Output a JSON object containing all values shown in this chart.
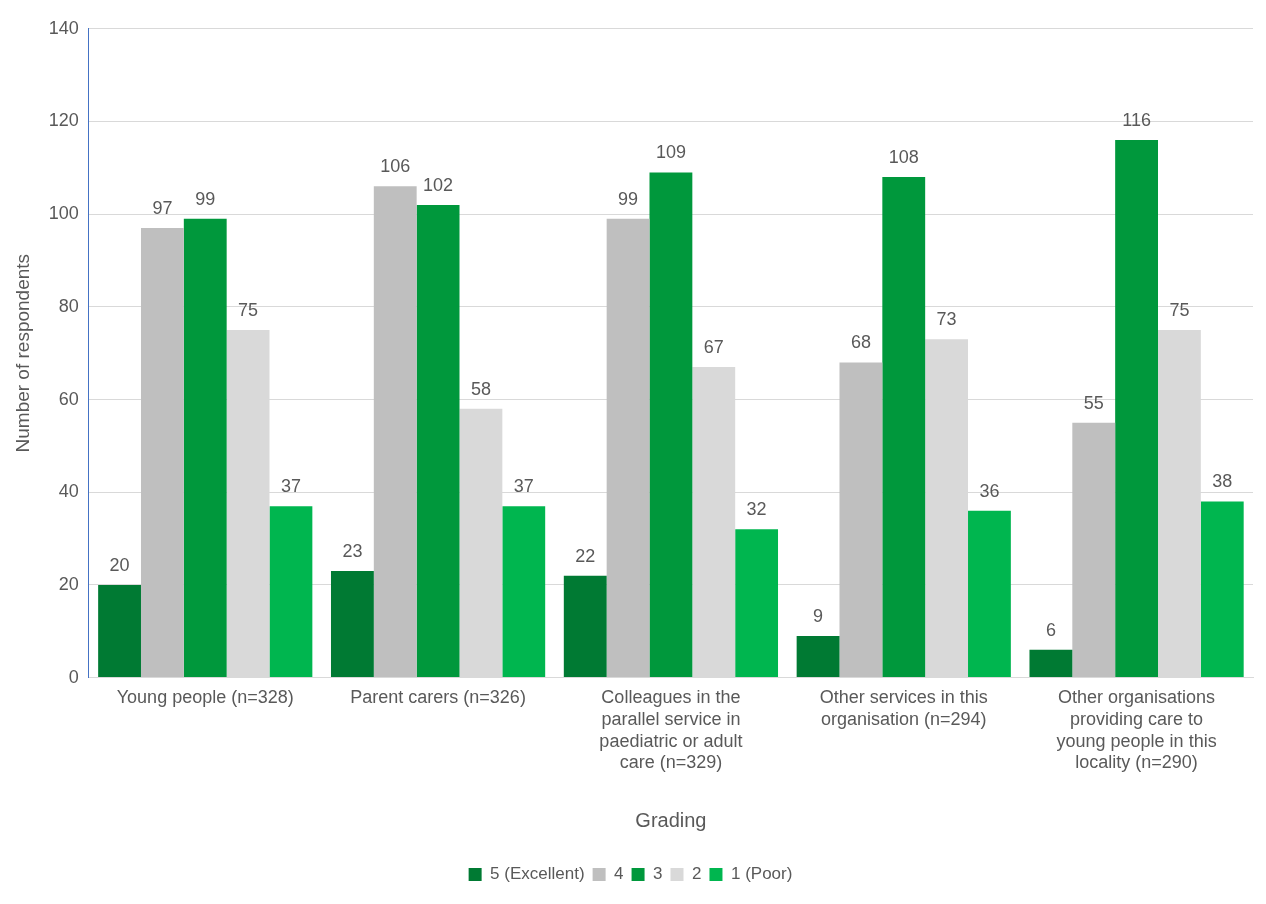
{
  "chart_data": {
    "type": "bar",
    "xlabel": "Grading",
    "ylabel": "Number of respondents",
    "categories": [
      "Young people (n=328)",
      "Parent carers (n=326)",
      "Colleagues in the parallel service in paediatric or adult care (n=329)",
      "Other services in this organisation (n=294)",
      "Other organisations providing care to young people in this locality (n=290)"
    ],
    "series": [
      {
        "name": "5 (Excellent)",
        "color": "#007a33",
        "values": [
          20,
          23,
          22,
          9,
          6
        ]
      },
      {
        "name": "4",
        "color": "#bfbfbf",
        "values": [
          97,
          106,
          99,
          68,
          55
        ]
      },
      {
        "name": "3",
        "color": "#00983c",
        "values": [
          99,
          102,
          109,
          108,
          116
        ]
      },
      {
        "name": "2",
        "color": "#d9d9d9",
        "values": [
          75,
          58,
          67,
          73,
          75
        ]
      },
      {
        "name": "1 (Poor)",
        "color": "#00b64f",
        "values": [
          37,
          37,
          32,
          36,
          38
        ]
      }
    ],
    "ylim": [
      0,
      140
    ],
    "yticks": [
      0,
      20,
      40,
      60,
      80,
      100,
      120,
      140
    ],
    "grid": "y",
    "legend": "bottom",
    "data_labels": true
  }
}
